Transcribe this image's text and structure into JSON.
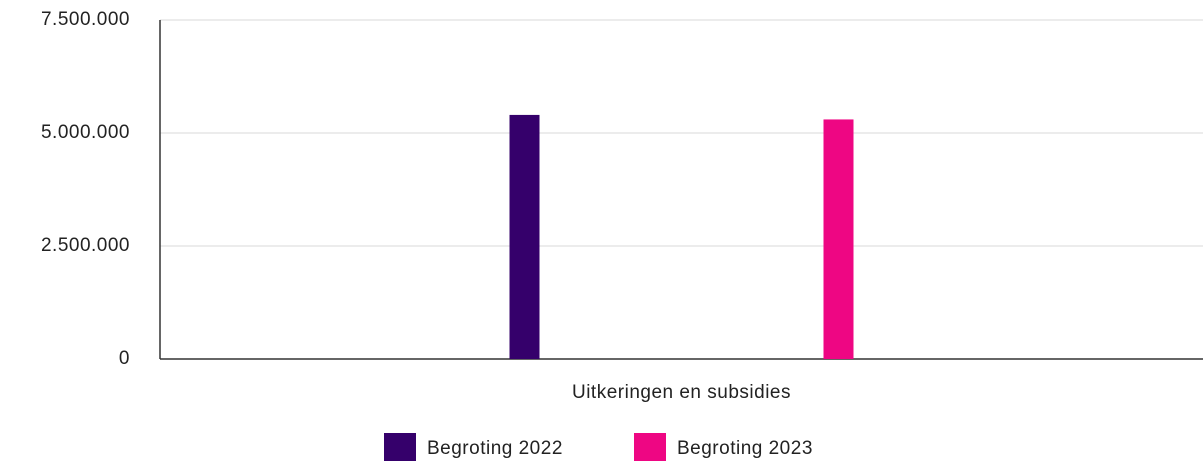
{
  "chart_data": {
    "type": "bar",
    "categories": [
      "Uitkeringen en subsidies"
    ],
    "series": [
      {
        "name": "Begroting 2022",
        "color": "#35006b",
        "values": [
          5400000
        ]
      },
      {
        "name": "Begroting 2023",
        "color": "#ee0683",
        "values": [
          5300000
        ]
      }
    ],
    "ylim": [
      0,
      7500000
    ],
    "yticks": [
      0,
      {
        "value": 2500000,
        "label": "2.500.000"
      },
      {
        "value": 5000000,
        "label": "5.000.000"
      },
      {
        "value": 7500000,
        "label": "7.500.000"
      }
    ],
    "grid": true
  }
}
